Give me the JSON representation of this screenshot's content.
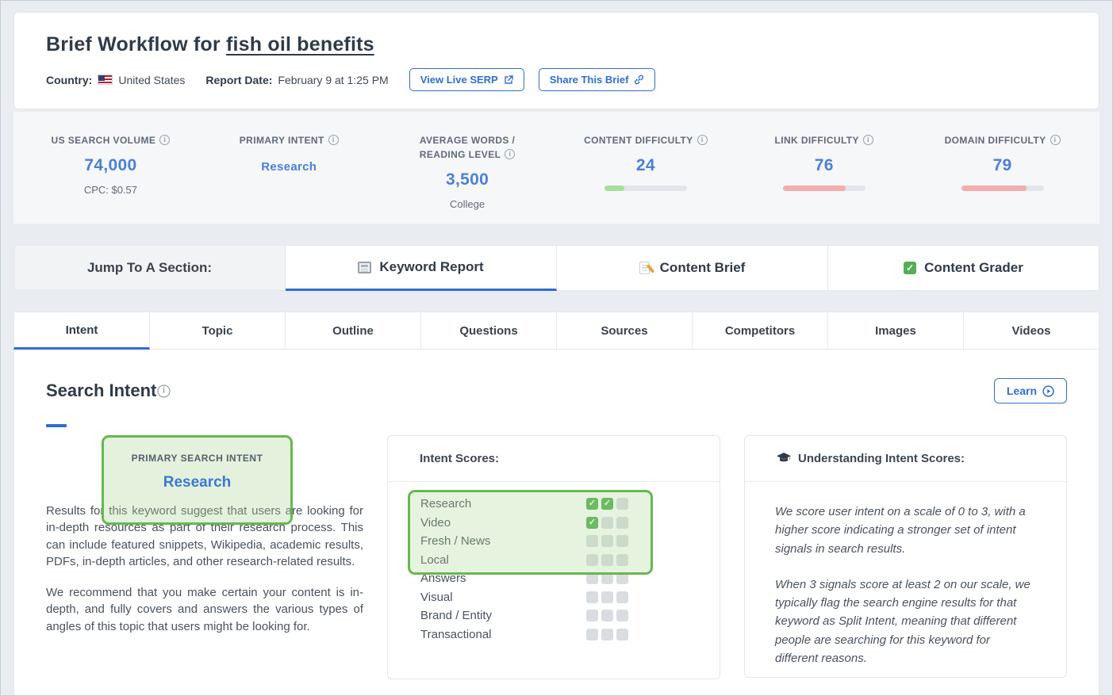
{
  "colors": {
    "accent_blue": "#2e6fd0",
    "value_blue": "#4a80d8",
    "bar_green": "#a6df9e",
    "bar_red": "#f3adad",
    "highlight_green": "#67b84f"
  },
  "header": {
    "title_prefix": "Brief Workflow for",
    "keyword": "fish oil benefits",
    "country_label": "Country:",
    "country_value": "United States",
    "report_date_label": "Report Date:",
    "report_date_value": "February 9 at 1:25 PM",
    "view_serp_button": "View Live SERP",
    "share_button": "Share This Brief"
  },
  "metrics": [
    {
      "label": "US SEARCH VOLUME",
      "value": "74,000",
      "sub": "CPC: $0.57"
    },
    {
      "label": "PRIMARY INTENT",
      "value": "Research",
      "small": true
    },
    {
      "label": "AVERAGE WORDS / READING LEVEL",
      "value": "3,500",
      "sub": "College"
    },
    {
      "label": "CONTENT DIFFICULTY",
      "value": "24",
      "bar": 24,
      "bar_color": "#a6df9e"
    },
    {
      "label": "LINK DIFFICULTY",
      "value": "76",
      "bar": 76,
      "bar_color": "#f3adad"
    },
    {
      "label": "DOMAIN DIFFICULTY",
      "value": "79",
      "bar": 79,
      "bar_color": "#f3adad"
    }
  ],
  "section_nav": {
    "label": "Jump To A Section:",
    "items": [
      {
        "label": "Keyword Report",
        "active": true
      },
      {
        "label": "Content Brief",
        "active": false
      },
      {
        "label": "Content Grader",
        "active": false
      }
    ]
  },
  "tabs": [
    {
      "label": "Intent",
      "active": true
    },
    {
      "label": "Topic"
    },
    {
      "label": "Outline"
    },
    {
      "label": "Questions"
    },
    {
      "label": "Sources"
    },
    {
      "label": "Competitors"
    },
    {
      "label": "Images"
    },
    {
      "label": "Videos"
    }
  ],
  "search_intent": {
    "heading": "Search Intent",
    "learn_button": "Learn",
    "primary_label": "PRIMARY SEARCH INTENT",
    "primary_value": "Research",
    "description_p1": "Results for this keyword suggest that users are looking for in-depth resources as part of their research process. This can include featured snippets, Wikipedia, academic results, PDFs, in-depth articles, and other research-related results.",
    "description_p2": "We recommend that you make certain your content is in-depth, and fully covers and answers the various types of angles of this topic that users might be looking for."
  },
  "intent_scores": {
    "heading": "Intent Scores:",
    "max_score": 3,
    "rows": [
      {
        "label": "Research",
        "score": 2,
        "highlighted": true
      },
      {
        "label": "Video",
        "score": 1,
        "highlighted": true
      },
      {
        "label": "Fresh / News",
        "score": 0,
        "highlighted": true
      },
      {
        "label": "Local",
        "score": 0,
        "highlighted": true
      },
      {
        "label": "Answers",
        "score": 0,
        "highlighted": false
      },
      {
        "label": "Visual",
        "score": 0,
        "highlighted": false
      },
      {
        "label": "Brand / Entity",
        "score": 0,
        "highlighted": false
      },
      {
        "label": "Transactional",
        "score": 0,
        "highlighted": false
      }
    ]
  },
  "understanding": {
    "heading": "Understanding Intent Scores:",
    "p1": "We score user intent on a scale of 0 to 3, with a higher score indicating a stronger set of intent signals in search results.",
    "p2": "When 3 signals score at least 2 on our scale, we typically flag the search engine results for that keyword as Split Intent, meaning that different people are searching for this keyword for different reasons."
  }
}
